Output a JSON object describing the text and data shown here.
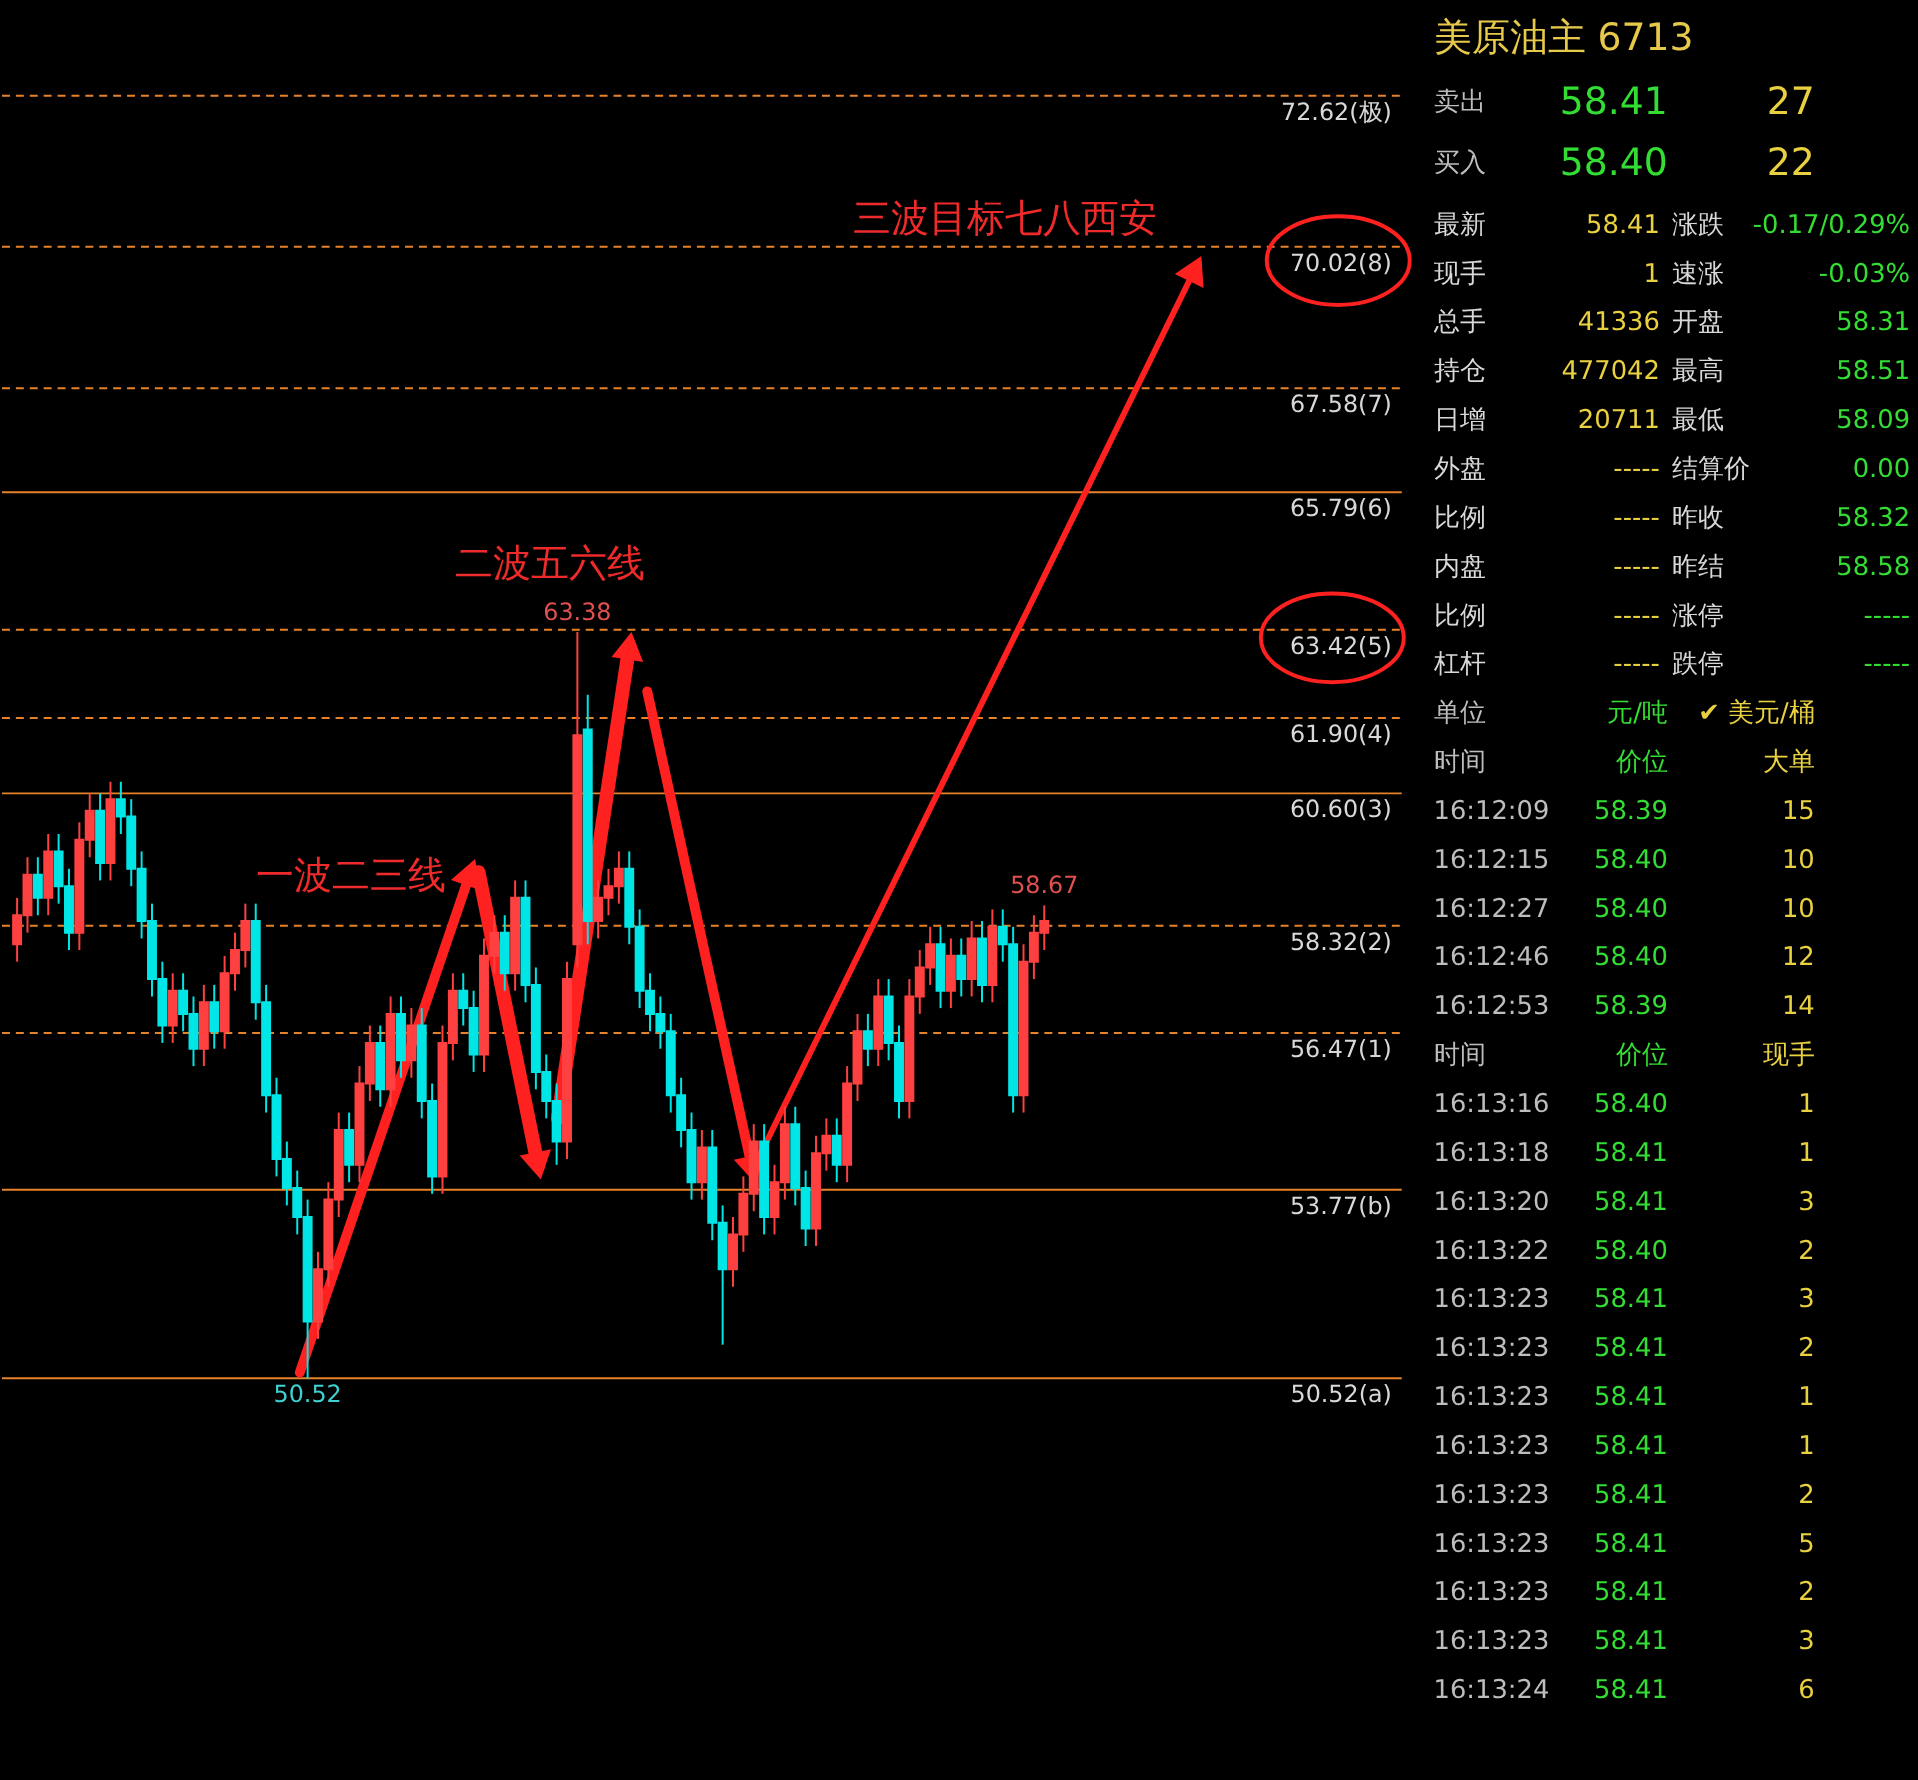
{
  "chart_data": [
    {
      "type": "candlestick",
      "categories": [
        null,
        null,
        null,
        null,
        null,
        null,
        null,
        null,
        null,
        null,
        null,
        null,
        null,
        null,
        null,
        null,
        null,
        null,
        null,
        null,
        null,
        null,
        null,
        null,
        null,
        null,
        null,
        null,
        null,
        null,
        null,
        null,
        null,
        null,
        null,
        null,
        null,
        null,
        null,
        null,
        null,
        null,
        null,
        null,
        null,
        null,
        null,
        null,
        null,
        null,
        null,
        null,
        null,
        null,
        null,
        null,
        null,
        null,
        null,
        null,
        null,
        null,
        null,
        null,
        null,
        null,
        null,
        null,
        null,
        null,
        null,
        null,
        null,
        null,
        null,
        null,
        null,
        null,
        null,
        null,
        null,
        null,
        null,
        null,
        null,
        null,
        null,
        null,
        null,
        null,
        null,
        null,
        null,
        null,
        null,
        null,
        null,
        null,
        null,
        null
      ],
      "ohlc": [
        [
          58.0,
          58.8,
          57.7,
          58.5
        ],
        [
          58.5,
          59.5,
          58.2,
          59.2
        ],
        [
          59.2,
          59.5,
          58.5,
          58.8
        ],
        [
          58.8,
          59.9,
          58.5,
          59.6
        ],
        [
          59.6,
          59.9,
          58.7,
          59.0
        ],
        [
          59.0,
          59.3,
          57.9,
          58.2
        ],
        [
          58.2,
          60.1,
          57.9,
          59.8
        ],
        [
          59.8,
          60.6,
          59.5,
          60.3
        ],
        [
          60.3,
          60.6,
          59.1,
          59.4
        ],
        [
          59.4,
          60.8,
          59.1,
          60.5
        ],
        [
          60.5,
          60.8,
          59.9,
          60.2
        ],
        [
          60.2,
          60.5,
          59.0,
          59.3
        ],
        [
          59.3,
          59.6,
          58.1,
          58.4
        ],
        [
          58.4,
          58.7,
          57.1,
          57.4
        ],
        [
          57.4,
          57.7,
          56.3,
          56.6
        ],
        [
          56.6,
          57.5,
          56.3,
          57.2
        ],
        [
          57.2,
          57.5,
          56.5,
          56.8
        ],
        [
          56.8,
          57.1,
          55.9,
          56.2
        ],
        [
          56.2,
          57.3,
          55.9,
          57.0
        ],
        [
          57.0,
          57.3,
          56.2,
          56.5
        ],
        [
          56.5,
          57.8,
          56.2,
          57.5
        ],
        [
          57.5,
          58.2,
          57.2,
          57.9
        ],
        [
          57.9,
          58.7,
          57.6,
          58.4
        ],
        [
          58.4,
          58.7,
          56.7,
          57.0
        ],
        [
          57.0,
          57.3,
          55.1,
          55.4
        ],
        [
          55.4,
          55.7,
          54.0,
          54.3
        ],
        [
          54.3,
          54.6,
          53.5,
          53.8
        ],
        [
          53.8,
          54.1,
          53.0,
          53.3
        ],
        [
          53.3,
          53.6,
          50.52,
          51.5
        ],
        [
          51.5,
          52.7,
          51.2,
          52.4
        ],
        [
          52.4,
          53.9,
          52.1,
          53.6
        ],
        [
          53.6,
          55.1,
          53.3,
          54.8
        ],
        [
          54.8,
          55.1,
          53.9,
          54.2
        ],
        [
          54.2,
          55.9,
          53.9,
          55.6
        ],
        [
          55.6,
          56.6,
          55.3,
          56.3
        ],
        [
          56.3,
          56.6,
          55.2,
          55.5
        ],
        [
          55.5,
          57.1,
          55.2,
          56.8
        ],
        [
          56.8,
          57.1,
          55.7,
          56.0
        ],
        [
          56.0,
          56.9,
          55.7,
          56.6
        ],
        [
          56.6,
          56.9,
          55.0,
          55.3
        ],
        [
          55.3,
          55.6,
          53.7,
          54.0
        ],
        [
          54.0,
          56.6,
          53.7,
          56.3
        ],
        [
          56.3,
          57.5,
          56.0,
          57.2
        ],
        [
          57.2,
          57.5,
          56.6,
          56.9
        ],
        [
          56.9,
          57.2,
          55.8,
          56.1
        ],
        [
          56.1,
          58.1,
          55.8,
          57.8
        ],
        [
          57.8,
          58.5,
          57.5,
          58.2
        ],
        [
          58.2,
          58.5,
          57.2,
          57.5
        ],
        [
          57.5,
          59.1,
          57.2,
          58.8
        ],
        [
          58.8,
          59.1,
          57.0,
          57.3
        ],
        [
          57.3,
          57.6,
          55.5,
          55.8
        ],
        [
          55.8,
          56.1,
          55.0,
          55.3
        ],
        [
          55.3,
          55.6,
          54.2,
          54.6
        ],
        [
          54.6,
          57.7,
          54.3,
          57.4
        ],
        [
          58.0,
          63.38,
          57.6,
          61.6
        ],
        [
          61.7,
          62.3,
          58.0,
          58.4
        ],
        [
          58.4,
          59.1,
          58.1,
          58.8
        ],
        [
          58.8,
          59.3,
          58.5,
          59.0
        ],
        [
          59.0,
          59.6,
          58.7,
          59.3
        ],
        [
          59.3,
          59.6,
          58.0,
          58.3
        ],
        [
          58.3,
          58.6,
          56.9,
          57.2
        ],
        [
          57.2,
          57.5,
          56.5,
          56.8
        ],
        [
          56.8,
          57.1,
          56.2,
          56.5
        ],
        [
          56.5,
          56.8,
          55.1,
          55.4
        ],
        [
          55.4,
          55.7,
          54.5,
          54.8
        ],
        [
          54.8,
          55.1,
          53.6,
          53.9
        ],
        [
          53.9,
          54.8,
          53.6,
          54.5
        ],
        [
          54.5,
          54.8,
          52.9,
          53.2
        ],
        [
          53.2,
          53.5,
          51.1,
          52.4
        ],
        [
          52.4,
          53.3,
          52.1,
          53.0
        ],
        [
          53.0,
          54.0,
          52.7,
          53.7
        ],
        [
          53.7,
          54.9,
          53.4,
          54.6
        ],
        [
          54.6,
          54.9,
          53.0,
          53.3
        ],
        [
          53.3,
          54.2,
          53.0,
          53.9
        ],
        [
          53.9,
          55.2,
          53.6,
          54.9
        ],
        [
          54.9,
          55.2,
          53.5,
          53.8
        ],
        [
          53.8,
          54.1,
          52.8,
          53.1
        ],
        [
          53.1,
          54.7,
          52.8,
          54.4
        ],
        [
          54.4,
          55.0,
          54.1,
          54.7
        ],
        [
          54.7,
          55.0,
          53.9,
          54.2
        ],
        [
          54.2,
          55.9,
          53.9,
          55.6
        ],
        [
          55.6,
          56.8,
          55.3,
          56.5
        ],
        [
          56.5,
          56.8,
          55.9,
          56.2
        ],
        [
          56.2,
          57.4,
          55.9,
          57.1
        ],
        [
          57.1,
          57.4,
          56.0,
          56.3
        ],
        [
          56.3,
          56.6,
          55.0,
          55.3
        ],
        [
          55.3,
          57.4,
          55.0,
          57.1
        ],
        [
          57.1,
          57.9,
          56.8,
          57.6
        ],
        [
          57.6,
          58.3,
          57.3,
          58.0
        ],
        [
          58.0,
          58.3,
          56.9,
          57.2
        ],
        [
          57.2,
          58.1,
          56.9,
          57.8
        ],
        [
          57.8,
          58.1,
          57.1,
          57.4
        ],
        [
          57.4,
          58.4,
          57.1,
          58.1
        ],
        [
          58.1,
          58.4,
          57.0,
          57.3
        ],
        [
          57.3,
          58.6,
          57.0,
          58.3
        ],
        [
          58.3,
          58.6,
          57.7,
          58.0
        ],
        [
          58.0,
          58.3,
          55.1,
          55.4
        ],
        [
          55.4,
          58.0,
          55.1,
          57.7
        ],
        [
          57.7,
          58.5,
          57.4,
          58.2
        ],
        [
          58.2,
          58.67,
          57.9,
          58.4
        ]
      ],
      "ylim": [
        43.71,
        74.16
      ],
      "tick_labels": false,
      "ref_lines": [
        {
          "axis": "y",
          "value": 72.62,
          "label": "72.62(极)",
          "color": "#e8822a",
          "line_style": "dashed"
        },
        {
          "axis": "y",
          "value": 70.02,
          "label": "70.02(8)",
          "color": "#e8822a",
          "line_style": "dashed"
        },
        {
          "axis": "y",
          "value": 67.58,
          "label": "67.58(7)",
          "color": "#e8822a",
          "line_style": "dashed"
        },
        {
          "axis": "y",
          "value": 65.79,
          "label": "65.79(6)",
          "color": "#e8822a",
          "line_style": "solid"
        },
        {
          "axis": "y",
          "value": 63.42,
          "label": "63.42(5)",
          "color": "#e8822a",
          "line_style": "dashed"
        },
        {
          "axis": "y",
          "value": 61.9,
          "label": "61.90(4)",
          "color": "#e8822a",
          "line_style": "dashed"
        },
        {
          "axis": "y",
          "value": 60.6,
          "label": "60.60(3)",
          "color": "#e8822a",
          "line_style": "solid"
        },
        {
          "axis": "y",
          "value": 58.32,
          "label": "58.32(2)",
          "color": "#e8822a",
          "line_style": "dashed"
        },
        {
          "axis": "y",
          "value": 56.47,
          "label": "56.47(1)",
          "color": "#e8822a",
          "line_style": "dashed"
        },
        {
          "axis": "y",
          "value": 53.77,
          "label": "53.77(b)",
          "color": "#e8822a",
          "line_style": "solid"
        },
        {
          "axis": "y",
          "value": 50.52,
          "label": "50.52(a)",
          "color": "#e8822a",
          "line_style": "solid"
        }
      ],
      "annotations": [
        "三波目标七八西安",
        "二波五六线",
        "一波二三线",
        {
          "text": "63.38",
          "y": 63.38
        },
        {
          "text": "50.52",
          "y": 50.52
        },
        {
          "text": "58.67",
          "y": 58.67
        }
      ]
    },
    {
      "type": "other",
      "title": "美原油主 6713",
      "annotations": [
        "卖出\t58.41\t27",
        "买入\t58.40\t22",
        "最新\t58.41\t涨跌\t-0.17/0.29%",
        "现手\t1\t速涨\t-0.03%",
        "总手\t41336\t开盘\t58.31",
        "持仓\t477042\t最高\t58.51",
        "日增\t20711\t最低\t58.09",
        "外盘\t-----\t结算价\t0.00",
        "比例\t-----\t昨收\t58.32",
        "内盘\t-----\t昨结\t58.58",
        "比例\t-----\t涨停\t-----",
        "杠杆\t-----\t跌停\t-----",
        "单位\t元/吨\t✔ 美元/桶",
        "时间\t价位\t大单",
        "16:12:09\t58.39\t15",
        "16:12:15\t58.40\t10",
        "16:12:27\t58.40\t10",
        "16:12:46\t58.40\t12",
        "16:12:53\t58.39\t14",
        "时间\t价位\t现手",
        "16:13:16\t58.40\t1",
        "16:13:18\t58.41\t1",
        "16:13:20\t58.41\t3",
        "16:13:22\t58.40\t2",
        "16:13:23\t58.41\t3",
        "16:13:23\t58.41\t2",
        "16:13:23\t58.41\t1",
        "16:13:23\t58.41\t1",
        "16:13:23\t58.41\t2",
        "16:13:23\t58.41\t5",
        "16:13:23\t58.41\t2",
        "16:13:23\t58.41\t3",
        "16:13:24\t58.41\t6"
      ]
    }
  ]
}
